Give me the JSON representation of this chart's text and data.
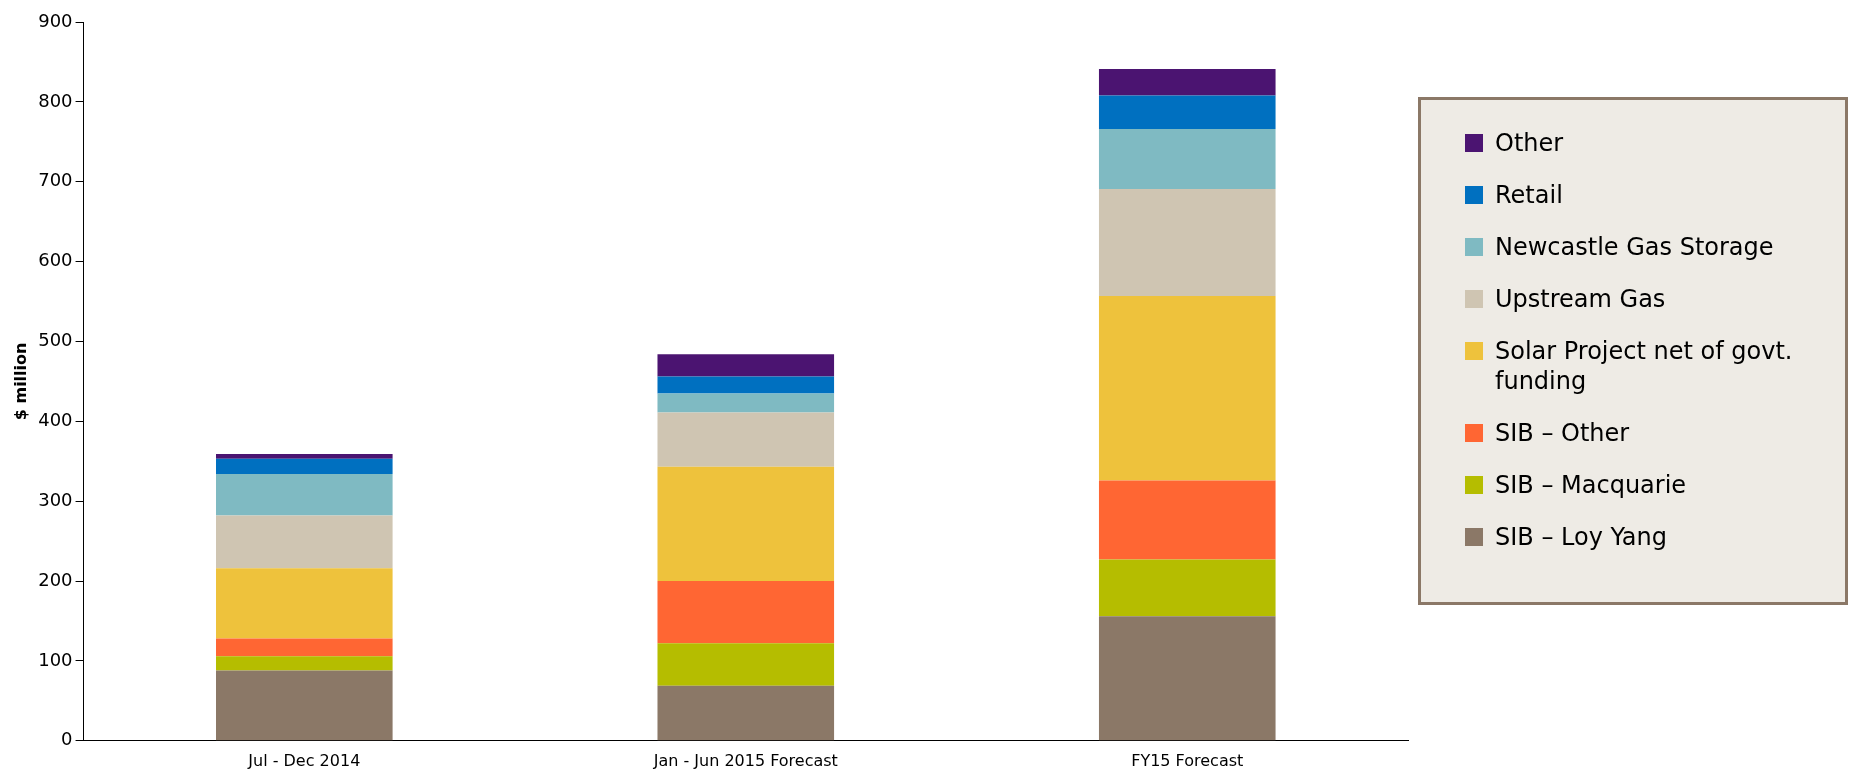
{
  "chart_data": {
    "type": "bar",
    "stacked": true,
    "ylabel": "$ million",
    "categories": [
      "Jul - Dec 2014",
      "Jan - Jun 2015 Forecast",
      "FY15 Forecast"
    ],
    "ylim": [
      0,
      900
    ],
    "yticks": [
      0,
      100,
      200,
      300,
      400,
      500,
      600,
      700,
      800,
      900
    ],
    "grid": false,
    "legend": "right",
    "series": [
      {
        "name": "SIB – Loy Yang",
        "color": "#8b7867",
        "values": [
          88,
          69,
          156
        ]
      },
      {
        "name": "SIB – Macquarie",
        "color": "#b5bd00",
        "values": [
          18,
          53,
          71
        ]
      },
      {
        "name": "SIB – Other",
        "color": "#ff6633",
        "values": [
          22,
          78,
          99
        ]
      },
      {
        "name": "Solar Project net of govt. funding",
        "color": "#eec23c",
        "values": [
          88,
          143,
          231
        ]
      },
      {
        "name": "Upstream Gas",
        "color": "#cfc5b2",
        "values": [
          66,
          68,
          134
        ]
      },
      {
        "name": "Newcastle Gas Storage",
        "color": "#7fbac2",
        "values": [
          52,
          24,
          75
        ]
      },
      {
        "name": "Retail",
        "color": "#0070c0",
        "values": [
          19,
          21,
          42
        ]
      },
      {
        "name": "Other",
        "color": "#4b1471",
        "values": [
          6,
          28,
          33
        ]
      }
    ]
  }
}
